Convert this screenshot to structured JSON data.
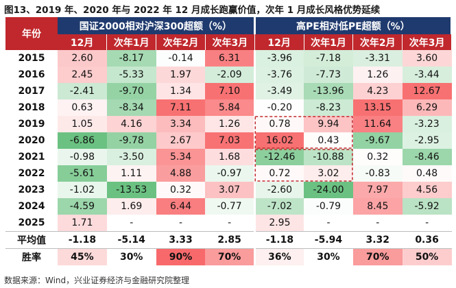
{
  "header": {
    "title": "图13、2019 年、2020 年与 2022 年 12 月成长跑赢价值，次年 1 月成长风格优势延续"
  },
  "table": {
    "corner": "年份",
    "groups": [
      "国证2000相对沪深300超额（%）",
      "高PE相对低PE超额（%）"
    ],
    "columns": [
      "12月",
      "次年1月",
      "次年2月",
      "次年3月",
      "12月",
      "次年1月",
      "次年2月",
      "次年3月"
    ],
    "rows": [
      [
        "2015",
        "2.60",
        "-8.17",
        "-0.14",
        "6.31",
        "-3.96",
        "-7.18",
        "-3.31",
        "3.60"
      ],
      [
        "2016",
        "2.45",
        "-5.33",
        "1.97",
        "-2.09",
        "-3.76",
        "-7.73",
        "1.26",
        "-3.44"
      ],
      [
        "2017",
        "-2.41",
        "-9.70",
        "1.34",
        "7.10",
        "-3.49",
        "-13.96",
        "4.23",
        "12.67"
      ],
      [
        "2018",
        "0.63",
        "-8.34",
        "7.11",
        "5.84",
        "-0.20",
        "-8.23",
        "13.15",
        "6.29"
      ],
      [
        "2019",
        "1.05",
        "4.16",
        "3.34",
        "1.26",
        "0.78",
        "9.94",
        "11.64",
        "-3.23"
      ],
      [
        "2020",
        "-6.86",
        "-9.78",
        "2.67",
        "7.03",
        "16.02",
        "0.43",
        "-9.67",
        "-2.95"
      ],
      [
        "2021",
        "-0.98",
        "-3.50",
        "5.34",
        "1.68",
        "-12.46",
        "-10.88",
        "0.32",
        "-8.46"
      ],
      [
        "2022",
        "-5.61",
        "1.11",
        "4.88",
        "-0.97",
        "0.72",
        "3.02",
        "-0.83",
        "0.48"
      ],
      [
        "2023",
        "-1.02",
        "-13.53",
        "0.32",
        "3.07",
        "-2.60",
        "-24.00",
        "7.97",
        "4.56"
      ],
      [
        "2024",
        "-4.59",
        "1.69",
        "6.44",
        "-0.77",
        "-7.02",
        "-0.79",
        "8.45",
        "-5.92"
      ],
      [
        "2025",
        "1.71",
        "-",
        "-",
        "-",
        "2.95",
        "-",
        "-",
        "-"
      ],
      [
        "平均值",
        "-1.18",
        "-5.14",
        "3.33",
        "2.85",
        "-1.18",
        "-5.94",
        "3.32",
        "0.36"
      ],
      [
        "胜率",
        "45%",
        "30%",
        "90%",
        "70%",
        "36%",
        "30%",
        "70%",
        "50%"
      ]
    ]
  },
  "footer": {
    "source": "数据来源：Wind，兴业证券经济与金融研究院整理"
  }
}
